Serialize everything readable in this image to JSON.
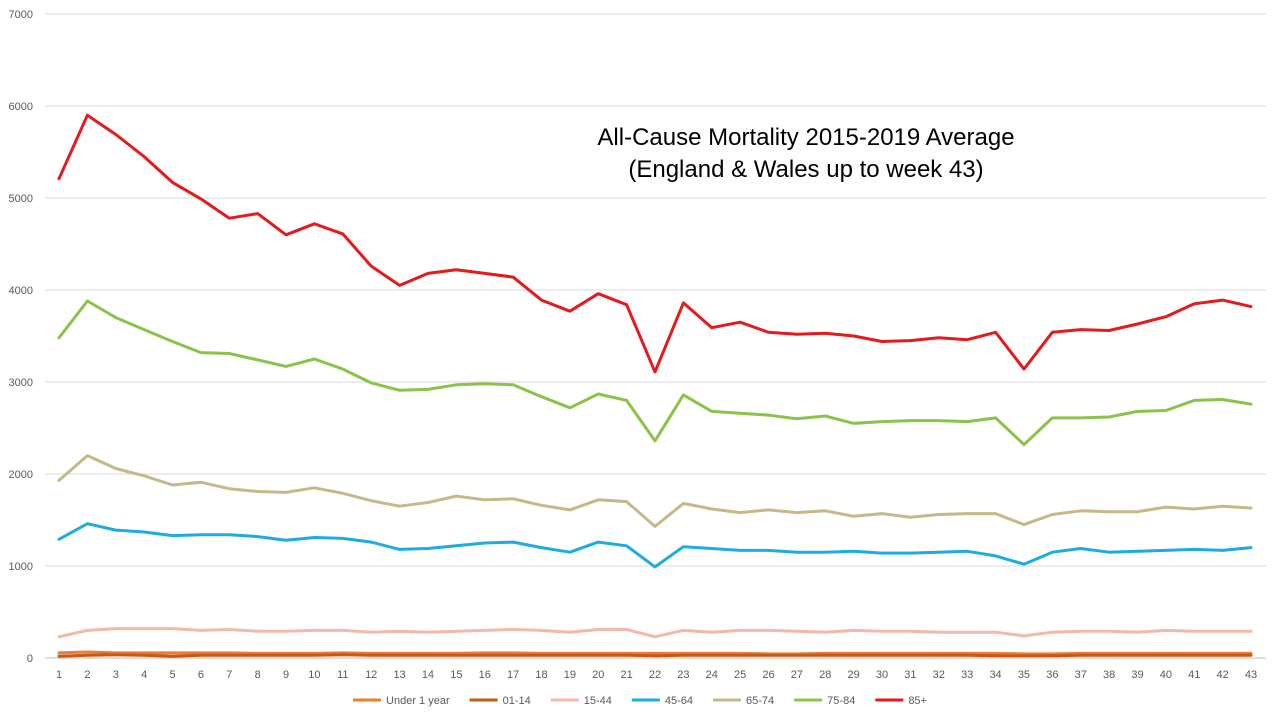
{
  "chart_data": {
    "type": "line",
    "title": "All-Cause Mortality 2015-2019 Average",
    "subtitle": "(England & Wales up to week 43)",
    "xlabel": "",
    "ylabel": "",
    "ylim": [
      0,
      7000
    ],
    "yticks": [
      0,
      1000,
      2000,
      3000,
      4000,
      5000,
      6000,
      7000
    ],
    "x": [
      1,
      2,
      3,
      4,
      5,
      6,
      7,
      8,
      9,
      10,
      11,
      12,
      13,
      14,
      15,
      16,
      17,
      18,
      19,
      20,
      21,
      22,
      23,
      24,
      25,
      26,
      27,
      28,
      29,
      30,
      31,
      32,
      33,
      34,
      35,
      36,
      37,
      38,
      39,
      40,
      41,
      42,
      43
    ],
    "grid": true,
    "legend_position": "bottom",
    "series": [
      {
        "name": "Under 1 year",
        "color": "#ED7D31",
        "values": [
          55,
          65,
          55,
          55,
          55,
          55,
          55,
          50,
          50,
          50,
          55,
          50,
          50,
          50,
          50,
          55,
          55,
          50,
          50,
          50,
          50,
          50,
          50,
          50,
          50,
          45,
          45,
          50,
          50,
          50,
          50,
          50,
          50,
          50,
          45,
          45,
          50,
          50,
          50,
          50,
          50,
          50,
          50
        ]
      },
      {
        "name": "01-14",
        "color": "#C55A11",
        "values": [
          20,
          30,
          35,
          30,
          20,
          30,
          30,
          30,
          30,
          30,
          35,
          30,
          30,
          30,
          30,
          30,
          30,
          30,
          30,
          30,
          30,
          25,
          30,
          30,
          30,
          30,
          30,
          30,
          30,
          30,
          30,
          30,
          30,
          25,
          25,
          25,
          30,
          30,
          30,
          30,
          30,
          30,
          30
        ]
      },
      {
        "name": "15-44",
        "color": "#F4B8A8",
        "values": [
          230,
          300,
          320,
          320,
          320,
          300,
          310,
          290,
          290,
          300,
          300,
          280,
          290,
          280,
          290,
          300,
          310,
          300,
          280,
          310,
          310,
          230,
          300,
          280,
          300,
          300,
          290,
          280,
          300,
          290,
          290,
          280,
          280,
          280,
          240,
          280,
          290,
          290,
          280,
          300,
          290,
          290,
          290
        ]
      },
      {
        "name": "45-64",
        "color": "#1CACE2",
        "values": [
          1290,
          1460,
          1390,
          1370,
          1330,
          1340,
          1340,
          1320,
          1280,
          1310,
          1300,
          1260,
          1180,
          1190,
          1220,
          1250,
          1260,
          1200,
          1150,
          1260,
          1220,
          990,
          1210,
          1190,
          1170,
          1170,
          1150,
          1150,
          1160,
          1140,
          1140,
          1150,
          1160,
          1110,
          1020,
          1150,
          1190,
          1150,
          1160,
          1170,
          1180,
          1170,
          1200
        ]
      },
      {
        "name": "65-74",
        "color": "#C5B989",
        "values": [
          1930,
          2200,
          2060,
          1980,
          1880,
          1910,
          1840,
          1810,
          1800,
          1850,
          1790,
          1710,
          1650,
          1690,
          1760,
          1720,
          1730,
          1660,
          1610,
          1720,
          1700,
          1430,
          1680,
          1620,
          1580,
          1610,
          1580,
          1600,
          1540,
          1570,
          1530,
          1560,
          1570,
          1570,
          1450,
          1560,
          1600,
          1590,
          1590,
          1640,
          1620,
          1650,
          1630
        ]
      },
      {
        "name": "75-84",
        "color": "#8BC34A",
        "values": [
          3480,
          3880,
          3700,
          3570,
          3440,
          3320,
          3310,
          3240,
          3170,
          3250,
          3140,
          2990,
          2910,
          2920,
          2970,
          2980,
          2970,
          2840,
          2720,
          2870,
          2800,
          2360,
          2860,
          2680,
          2660,
          2640,
          2600,
          2630,
          2550,
          2570,
          2580,
          2580,
          2570,
          2610,
          2320,
          2610,
          2610,
          2620,
          2680,
          2690,
          2800,
          2810,
          2760
        ]
      },
      {
        "name": "85+",
        "color": "#E41A1C",
        "values": [
          5210,
          5900,
          5690,
          5450,
          5170,
          4990,
          4780,
          4830,
          4600,
          4720,
          4610,
          4260,
          4050,
          4180,
          4220,
          4180,
          4140,
          3890,
          3770,
          3960,
          3840,
          3110,
          3860,
          3590,
          3650,
          3540,
          3520,
          3530,
          3500,
          3440,
          3450,
          3480,
          3460,
          3540,
          3140,
          3540,
          3570,
          3560,
          3630,
          3710,
          3850,
          3890,
          3820
        ]
      }
    ]
  }
}
